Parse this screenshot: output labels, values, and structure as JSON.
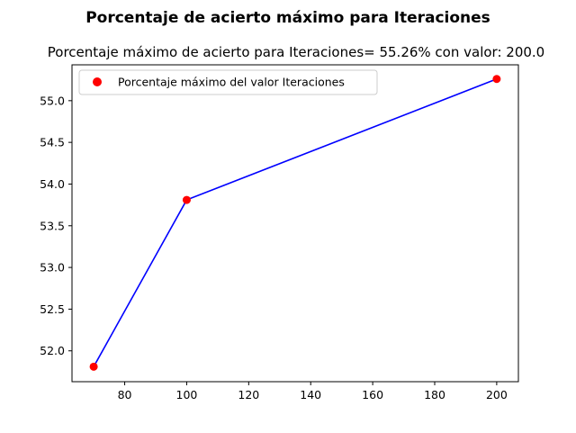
{
  "chart_data": {
    "type": "line",
    "suptitle": "Porcentaje de acierto máximo para Iteraciones",
    "title": "Porcentaje máximo de acierto para Iteraciones= 55.26% con valor: 200.0",
    "xlabel": "",
    "ylabel": "",
    "xlim": [
      63,
      207
    ],
    "ylim": [
      51.63,
      55.43
    ],
    "xticks": [
      80,
      100,
      120,
      140,
      160,
      180,
      200
    ],
    "yticks": [
      52.0,
      52.5,
      53.0,
      53.5,
      54.0,
      54.5,
      55.0
    ],
    "xtick_labels": [
      "80",
      "100",
      "120",
      "140",
      "160",
      "180",
      "200"
    ],
    "ytick_labels": [
      "52.0",
      "52.5",
      "53.0",
      "53.5",
      "54.0",
      "54.5",
      "55.0"
    ],
    "series": [
      {
        "name": "Porcentaje máximo del valor Iteraciones",
        "style": "line+scatter",
        "line_color": "#0000ff",
        "marker_color": "#ff0000",
        "x": [
          70,
          100,
          200
        ],
        "y": [
          51.81,
          53.81,
          55.26
        ]
      }
    ],
    "legend": {
      "position": "upper-left",
      "entries": [
        "Porcentaje máximo del valor Iteraciones"
      ]
    },
    "grid": false
  }
}
